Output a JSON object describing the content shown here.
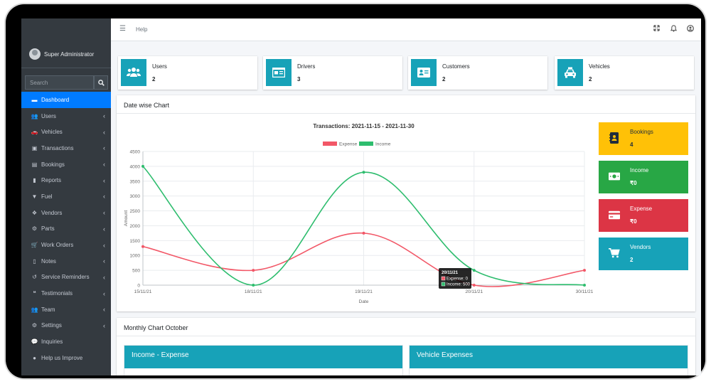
{
  "sidebar": {
    "user_name": "Super Administrator",
    "search_placeholder": "Search",
    "items": [
      {
        "label": "Dashboard",
        "icon": "dashboard-icon",
        "active": true
      },
      {
        "label": "Users",
        "icon": "users-icon"
      },
      {
        "label": "Vehicles",
        "icon": "car-icon"
      },
      {
        "label": "Transactions",
        "icon": "money-icon"
      },
      {
        "label": "Bookings",
        "icon": "address-card-icon"
      },
      {
        "label": "Reports",
        "icon": "book-icon"
      },
      {
        "label": "Fuel",
        "icon": "filter-icon"
      },
      {
        "label": "Vendors",
        "icon": "cubes-icon"
      },
      {
        "label": "Parts",
        "icon": "gear-icon"
      },
      {
        "label": "Work Orders",
        "icon": "cart-icon"
      },
      {
        "label": "Notes",
        "icon": "note-icon"
      },
      {
        "label": "Service Reminders",
        "icon": "history-icon"
      },
      {
        "label": "Testimonials",
        "icon": "quote-icon"
      },
      {
        "label": "Team",
        "icon": "team-icon"
      },
      {
        "label": "Settings",
        "icon": "gear-icon"
      },
      {
        "label": "Inquiries",
        "icon": "chat-icon"
      },
      {
        "label": "Help us Improve",
        "icon": "comment-icon"
      }
    ]
  },
  "topbar": {
    "help_label": "Help"
  },
  "info_boxes": [
    {
      "label": "Users",
      "value": "2",
      "icon": "users-icon"
    },
    {
      "label": "Drivers",
      "value": "3",
      "icon": "id-card-icon"
    },
    {
      "label": "Customers",
      "value": "2",
      "icon": "address-card-icon"
    },
    {
      "label": "Vehicles",
      "value": "2",
      "icon": "taxi-icon"
    }
  ],
  "chart_card": {
    "title": "Date wise Chart"
  },
  "chart_data": {
    "type": "line",
    "title": "Transactions: 2021-11-15 - 2021-11-30",
    "xlabel": "Date",
    "ylabel": "Amount",
    "categories": [
      "15/11/21",
      "18/11/21",
      "19/11/21",
      "20/11/21",
      "30/11/21"
    ],
    "ylim": [
      0,
      4500
    ],
    "yticks": [
      0,
      500,
      1000,
      1500,
      2000,
      2500,
      3000,
      3500,
      4000,
      4500
    ],
    "grid": true,
    "legend": "top",
    "series": [
      {
        "name": "Expense",
        "color": "#f25767",
        "values": [
          1300,
          500,
          1750,
          0,
          500
        ]
      },
      {
        "name": "Income",
        "color": "#2ebd6e",
        "values": [
          4000,
          0,
          3800,
          500,
          0
        ]
      }
    ],
    "tooltip": {
      "title": "20/11/21",
      "lines": [
        "Expense: 0",
        "Income: 500"
      ]
    }
  },
  "small_boxes": [
    {
      "label": "Bookings",
      "value": "4",
      "color": "#ffc107",
      "text_color": "#1f2d3d",
      "icon": "address-book-icon"
    },
    {
      "label": "Income",
      "value": "₹0",
      "color": "#28a745",
      "text_color": "#ffffff",
      "icon": "money-icon"
    },
    {
      "label": "Expense",
      "value": "₹0",
      "color": "#dc3545",
      "text_color": "#ffffff",
      "icon": "credit-card-icon"
    },
    {
      "label": "Vendors",
      "value": "2",
      "color": "#17a2b8",
      "text_color": "#ffffff",
      "icon": "cart-icon"
    }
  ],
  "monthly_card": {
    "title": "Monthly Chart October",
    "panels": [
      {
        "title": "Income - Expense"
      },
      {
        "title": "Vehicle Expenses"
      }
    ]
  }
}
